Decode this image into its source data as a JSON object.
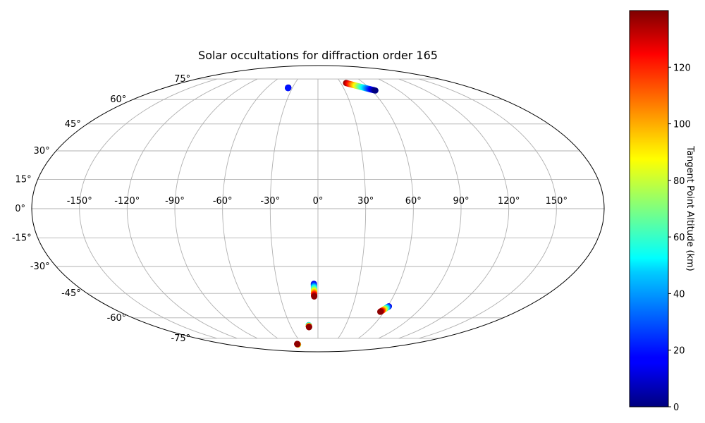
{
  "chart_data": {
    "type": "scatter",
    "projection": "mollweide",
    "title": "Solar occultations for diffraction order 165",
    "x_ticks": [
      "-150°",
      "-120°",
      "-90°",
      "-60°",
      "-30°",
      "0°",
      "30°",
      "60°",
      "90°",
      "120°",
      "150°"
    ],
    "x_tick_values": [
      -150,
      -120,
      -90,
      -60,
      -30,
      0,
      30,
      60,
      90,
      120,
      150
    ],
    "y_ticks": [
      "-75°",
      "-60°",
      "-45°",
      "-30°",
      "-15°",
      "0°",
      "15°",
      "30°",
      "45°",
      "60°",
      "75°"
    ],
    "y_tick_values": [
      -75,
      -60,
      -45,
      -30,
      -15,
      0,
      15,
      30,
      45,
      60,
      75
    ],
    "xlim": [
      -180,
      180
    ],
    "ylim": [
      -90,
      90
    ],
    "grid": true,
    "colormap": "jet",
    "colorbar": {
      "label": "Tangent Point Altitude (km)",
      "range": [
        0,
        140
      ],
      "ticks": [
        "0",
        "20",
        "40",
        "60",
        "80",
        "100",
        "120"
      ],
      "tick_values": [
        0,
        20,
        40,
        60,
        80,
        100,
        120
      ],
      "position": "right"
    },
    "tracks": [
      {
        "lon_start": 37,
        "lat_start": 71.8,
        "lon_end": 64,
        "lat_end": 66.2,
        "alt_start": 138,
        "alt_end": 0
      },
      {
        "lon_start": -35,
        "lat_start": 68.3,
        "lon_end": -35,
        "lat_end": 68.0,
        "alt_start": 0,
        "alt_end": 20
      },
      {
        "lon_start": -3,
        "lat_start": -39.5,
        "lon_end": -3,
        "lat_end": -46.8,
        "alt_start": 10,
        "alt_end": 138
      },
      {
        "lon_start": 61,
        "lat_start": -52.7,
        "lon_end": 56.5,
        "lat_end": -56.1,
        "alt_start": 10,
        "alt_end": 138
      },
      {
        "lon_start": -10,
        "lat_start": -65.0,
        "lon_end": -10,
        "lat_end": -66.4,
        "alt_start": 40,
        "alt_end": 138
      },
      {
        "lon_start": -40,
        "lat_start": -80.6,
        "lon_end": -40,
        "lat_end": -80.0,
        "alt_start": 60,
        "alt_end": 138
      }
    ]
  }
}
